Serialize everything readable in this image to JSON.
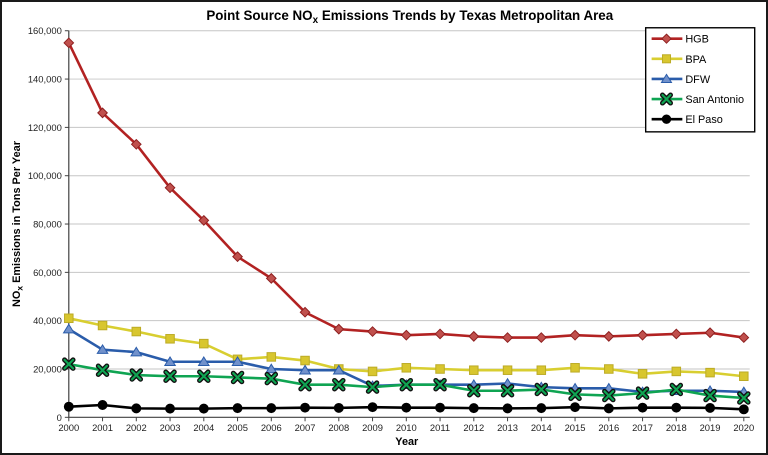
{
  "title": {
    "prefix": "Point Source NO",
    "subscript": "x",
    "suffix": " Emissions Trends by Texas Metropolitan Area"
  },
  "axes": {
    "x_label": "Year",
    "y_label": {
      "prefix": "NO",
      "subscript": "x",
      "suffix": " Emissions in Tons Per Year"
    },
    "y_tick_labels": [
      "0",
      "20,000",
      "40,000",
      "60,000",
      "80,000",
      "100,000",
      "120,000",
      "140,000",
      "160,000"
    ],
    "x_tick_labels": [
      "2000",
      "2001",
      "2002",
      "2003",
      "2004",
      "2005",
      "2006",
      "2007",
      "2008",
      "2009",
      "2010",
      "2011",
      "2012",
      "2013",
      "2014",
      "2015",
      "2016",
      "2017",
      "2018",
      "2019",
      "2020"
    ]
  },
  "legend": {
    "position": "top-right",
    "entries": [
      "HGB",
      "BPA",
      "DFW",
      "San Antonio",
      "El Paso"
    ]
  },
  "colors": {
    "background": "#FFFFFF",
    "border": "#1A1A1A",
    "grid": "#C6C6C6",
    "axis": "#404040",
    "tick_text": "#1F1F1F",
    "hgb_red": "#B22222",
    "bpa_yellow": "#D8CE30",
    "dfw_blue": "#2A5CAA",
    "san_antonio_green": "#0FA452",
    "el_paso_black": "#000000"
  },
  "chart_data": {
    "type": "line",
    "title": "Point Source NOx Emissions Trends by Texas Metropolitan Area",
    "xlabel": "Year",
    "ylabel": "NOx Emissions in Tons Per Year",
    "ylim": [
      0,
      160000
    ],
    "ytick_step": 20000,
    "grid": "horizontal",
    "legend_position": "top-right",
    "x": [
      2000,
      2001,
      2002,
      2003,
      2004,
      2005,
      2006,
      2007,
      2008,
      2009,
      2010,
      2011,
      2012,
      2013,
      2014,
      2015,
      2016,
      2017,
      2018,
      2019,
      2020
    ],
    "series": [
      {
        "name": "HGB",
        "marker": "diamond",
        "color": "#B22222",
        "marker_fill": "#C0504D",
        "marker_stroke": "#8E1F1F",
        "values": [
          155000,
          126000,
          113000,
          95000,
          81500,
          66500,
          57500,
          43500,
          36500,
          35500,
          34000,
          34500,
          33500,
          33000,
          33000,
          34000,
          33500,
          34000,
          34500,
          35000,
          33000
        ]
      },
      {
        "name": "BPA",
        "marker": "square",
        "color": "#D8CE30",
        "marker_fill": "#D8C62E",
        "marker_stroke": "#BCAB25",
        "values": [
          41000,
          38000,
          35500,
          32500,
          30500,
          24000,
          25000,
          23500,
          20000,
          19000,
          20500,
          20000,
          19500,
          19500,
          19500,
          20500,
          20000,
          18000,
          19000,
          18500,
          17000
        ]
      },
      {
        "name": "DFW",
        "marker": "triangle",
        "color": "#2A5CAA",
        "marker_fill": "#7191CB",
        "marker_stroke": "#2A5CAA",
        "values": [
          36500,
          28000,
          27000,
          23000,
          23000,
          23000,
          20000,
          19500,
          19500,
          13000,
          13500,
          13500,
          13500,
          14000,
          12500,
          12000,
          12000,
          10500,
          11000,
          11000,
          10500
        ]
      },
      {
        "name": "San Antonio",
        "marker": "x",
        "color": "#0FA452",
        "marker_fill": "#0FA452",
        "marker_stroke": "#111111",
        "values": [
          22000,
          19500,
          17500,
          17000,
          17000,
          16500,
          16000,
          13500,
          13500,
          12500,
          13500,
          13500,
          11000,
          11000,
          11500,
          9500,
          9000,
          10000,
          11500,
          9000,
          8000
        ]
      },
      {
        "name": "El Paso",
        "marker": "circle",
        "color": "#000000",
        "marker_fill": "#000000",
        "marker_stroke": "#000000",
        "values": [
          4400,
          5100,
          3700,
          3600,
          3600,
          3800,
          3800,
          4000,
          3900,
          4200,
          4000,
          4000,
          3800,
          3700,
          3800,
          4200,
          3700,
          4000,
          4000,
          3900,
          3300
        ]
      }
    ]
  }
}
